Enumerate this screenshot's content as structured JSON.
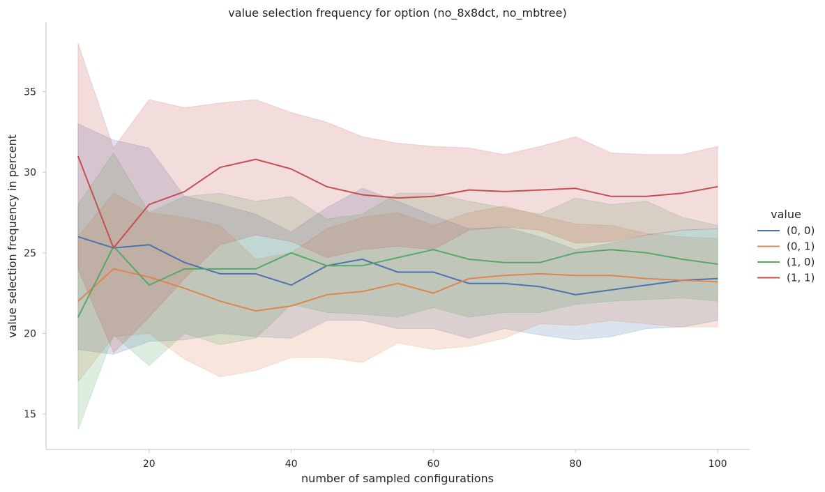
{
  "chart_data": {
    "type": "line",
    "title": "value selection frequency for option (no_8x8dct, no_mbtree)",
    "xlabel": "number of sampled configurations",
    "ylabel": "value selection frequency in percent",
    "xlim": [
      5.5,
      104.5
    ],
    "ylim": [
      12.8,
      39.3
    ],
    "xticks": [
      20,
      40,
      60,
      80,
      100
    ],
    "yticks": [
      15,
      20,
      25,
      30,
      35
    ],
    "grid": false,
    "legend": {
      "title": "value",
      "placement": "right"
    },
    "x": [
      10,
      15,
      20,
      25,
      30,
      35,
      40,
      45,
      50,
      55,
      60,
      65,
      70,
      75,
      80,
      85,
      90,
      95,
      100
    ],
    "series": [
      {
        "name": "(0, 0)",
        "color": "#4c72b0",
        "values": [
          26.0,
          25.3,
          25.5,
          24.4,
          23.7,
          23.7,
          23.0,
          24.2,
          24.6,
          23.8,
          23.8,
          23.1,
          23.1,
          22.9,
          22.4,
          22.7,
          23.0,
          23.3,
          23.4
        ],
        "lower": [
          19.0,
          18.7,
          19.5,
          19.6,
          20.0,
          19.8,
          19.7,
          20.8,
          20.8,
          20.3,
          20.3,
          19.7,
          20.3,
          19.9,
          19.6,
          19.8,
          20.3,
          20.4,
          20.8
        ],
        "upper": [
          33.0,
          32.0,
          31.5,
          28.5,
          28.0,
          27.4,
          26.3,
          27.8,
          29.0,
          28.2,
          27.3,
          26.5,
          26.6,
          26.0,
          25.2,
          25.6,
          26.1,
          26.4,
          26.5
        ]
      },
      {
        "name": "(0, 1)",
        "color": "#dd8452",
        "values": [
          22.0,
          24.0,
          23.5,
          22.8,
          22.0,
          21.4,
          21.7,
          22.4,
          22.6,
          23.1,
          22.5,
          23.4,
          23.6,
          23.7,
          23.6,
          23.6,
          23.4,
          23.3,
          23.2
        ],
        "lower": [
          17.0,
          19.8,
          20.0,
          18.4,
          17.3,
          17.7,
          18.5,
          18.5,
          18.2,
          19.4,
          19.0,
          19.2,
          19.7,
          20.6,
          20.5,
          20.8,
          20.6,
          20.4,
          20.4
        ],
        "upper": [
          26.0,
          28.7,
          27.5,
          27.2,
          26.7,
          24.6,
          25.0,
          26.5,
          27.2,
          27.5,
          26.7,
          27.5,
          27.9,
          27.3,
          26.8,
          26.7,
          26.2,
          26.0,
          25.9
        ]
      },
      {
        "name": "(1, 0)",
        "color": "#55a868",
        "values": [
          21.0,
          25.4,
          23.0,
          24.0,
          24.0,
          24.0,
          25.0,
          24.2,
          24.2,
          24.7,
          25.2,
          24.6,
          24.4,
          24.4,
          25.0,
          25.2,
          25.0,
          24.6,
          24.3
        ],
        "lower": [
          14.0,
          19.9,
          18.0,
          20.0,
          19.3,
          19.7,
          21.8,
          21.3,
          21.2,
          21.0,
          21.6,
          21.0,
          21.3,
          21.3,
          21.8,
          22.0,
          22.1,
          22.2,
          22.0
        ],
        "upper": [
          28.0,
          31.2,
          27.5,
          28.5,
          28.7,
          28.2,
          28.5,
          27.1,
          27.4,
          28.7,
          28.7,
          28.2,
          27.8,
          27.4,
          28.4,
          28.0,
          28.2,
          27.2,
          26.7
        ]
      },
      {
        "name": "(1, 1)",
        "color": "#c44e52",
        "values": [
          31.0,
          25.3,
          28.0,
          28.8,
          30.3,
          30.8,
          30.2,
          29.1,
          28.6,
          28.4,
          28.5,
          28.9,
          28.8,
          28.9,
          29.0,
          28.5,
          28.5,
          28.7,
          29.1
        ],
        "lower": [
          24.0,
          18.8,
          21.0,
          23.4,
          25.5,
          26.1,
          25.7,
          24.7,
          25.2,
          25.4,
          25.2,
          26.4,
          26.6,
          26.4,
          25.6,
          25.7,
          26.1,
          26.4,
          26.5
        ],
        "upper": [
          38.0,
          31.5,
          34.5,
          34.0,
          34.3,
          34.5,
          33.7,
          33.1,
          32.2,
          31.8,
          31.6,
          31.5,
          31.1,
          31.6,
          32.2,
          31.2,
          31.1,
          31.1,
          31.6
        ]
      }
    ]
  }
}
